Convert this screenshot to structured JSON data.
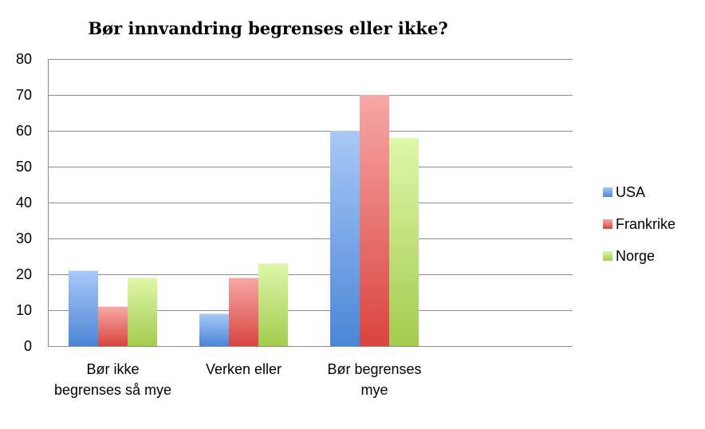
{
  "chart_data": {
    "type": "bar",
    "title": "Bør innvandring begrenses eller ikke?",
    "categories": [
      [
        "Bør ikke",
        "begrenses så mye"
      ],
      [
        "Verken eller"
      ],
      [
        "Bør begrenses",
        "mye"
      ]
    ],
    "series": [
      {
        "name": "USA",
        "values": [
          21,
          9,
          60
        ],
        "color_top": "#a9c9f7",
        "color_bottom": "#4a86d6"
      },
      {
        "name": "Frankrike",
        "values": [
          11,
          19,
          70
        ],
        "color_top": "#f7a8a6",
        "color_bottom": "#d9443f"
      },
      {
        "name": "Norge",
        "values": [
          19,
          23,
          58
        ],
        "color_top": "#def7a9",
        "color_bottom": "#a3cc4e"
      }
    ],
    "ylim": [
      0,
      80
    ],
    "yticks": [
      0,
      10,
      20,
      30,
      40,
      50,
      60,
      70,
      80
    ],
    "grid": true,
    "legend_position": "right"
  }
}
